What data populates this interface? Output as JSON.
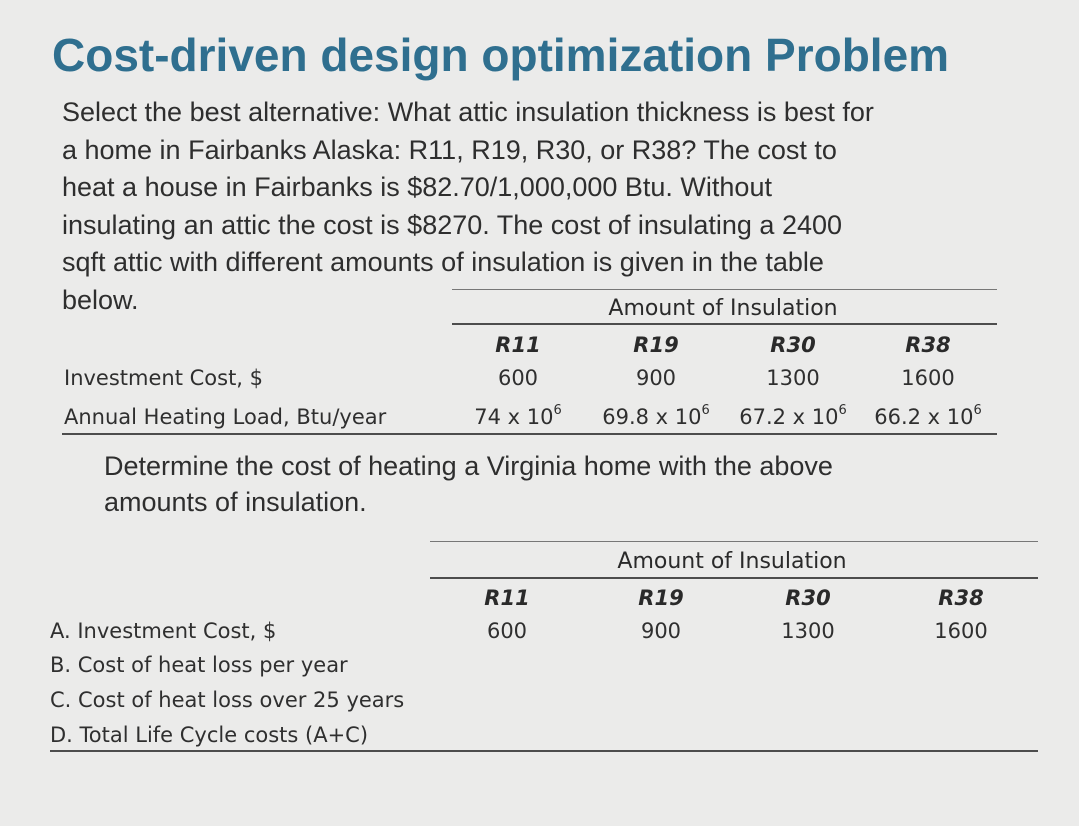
{
  "title": "Cost-driven design optimization Problem",
  "problem_lines": [
    "Select the best alternative: What attic insulation thickness is best for",
    "a home in Fairbanks Alaska: R11, R19, R30, or R38? The cost to",
    "heat a house in Fairbanks is $82.70/1,000,000 Btu.  Without",
    "insulating an attic the cost is $8270.  The cost of insulating a 2400",
    "sqft attic with different amounts of insulation is given in the table",
    "below."
  ],
  "table1": {
    "group_header": "Amount of Insulation",
    "columns": [
      "R11",
      "R19",
      "R30",
      "R38"
    ],
    "rows": [
      {
        "label": "Investment Cost, $",
        "values": [
          "600",
          "900",
          "1300",
          "1600"
        ]
      },
      {
        "label": "Annual Heating Load, Btu/year",
        "values": [
          {
            "base": "74 x 10",
            "exp": "6"
          },
          {
            "base": "69.8 x 10",
            "exp": "6"
          },
          {
            "base": "67.2 x 10",
            "exp": "6"
          },
          {
            "base": "66.2 x 10",
            "exp": "6"
          }
        ]
      }
    ]
  },
  "question_lines": [
    "Determine the cost of heating a Virginia home with the above",
    "amounts of insulation."
  ],
  "table2": {
    "group_header": "Amount of Insulation",
    "columns": [
      "R11",
      "R19",
      "R30",
      "R38"
    ],
    "rows": [
      {
        "label": "A. Investment Cost, $",
        "values": [
          "600",
          "900",
          "1300",
          "1600"
        ]
      },
      {
        "label": "B. Cost of heat loss per year",
        "values": []
      },
      {
        "label": "C. Cost of heat loss over 25 years",
        "values": []
      },
      {
        "label": "D. Total Life Cycle costs (A+C)",
        "values": []
      }
    ]
  },
  "colors": {
    "title": "#2f6f8f",
    "background": "#ebebea",
    "text": "#2e2e2e"
  }
}
